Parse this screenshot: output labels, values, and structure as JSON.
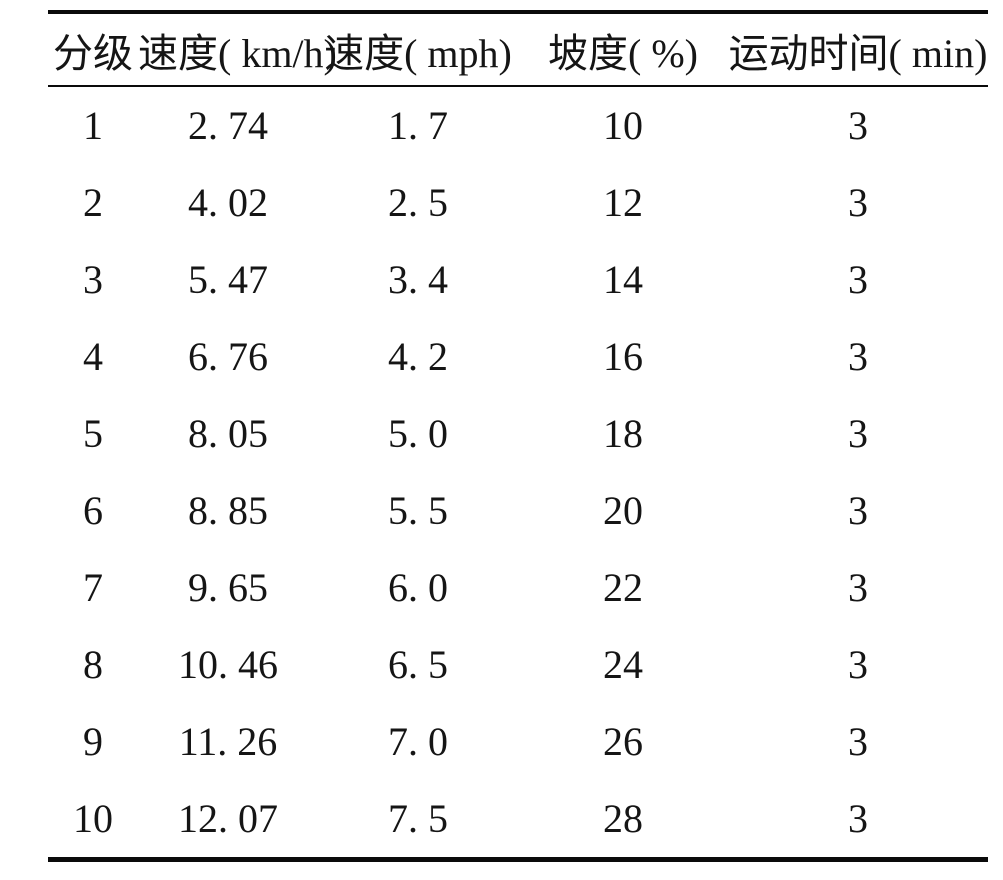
{
  "page": {
    "background_color": "#ffffff",
    "text_color": "#151515",
    "rule_color": "#0a0a0a"
  },
  "table": {
    "columns": [
      "分级",
      "速度( km/h)",
      "速度( mph)",
      "坡度( %)",
      "运动时间( min)"
    ],
    "rows": [
      [
        "1",
        "2. 74",
        "1. 7",
        "10",
        "3"
      ],
      [
        "2",
        "4. 02",
        "2. 5",
        "12",
        "3"
      ],
      [
        "3",
        "5. 47",
        "3. 4",
        "14",
        "3"
      ],
      [
        "4",
        "6. 76",
        "4. 2",
        "16",
        "3"
      ],
      [
        "5",
        "8. 05",
        "5. 0",
        "18",
        "3"
      ],
      [
        "6",
        "8. 85",
        "5. 5",
        "20",
        "3"
      ],
      [
        "7",
        "9. 65",
        "6. 0",
        "22",
        "3"
      ],
      [
        "8",
        "10. 46",
        "6. 5",
        "24",
        "3"
      ],
      [
        "9",
        "11. 26",
        "7. 0",
        "26",
        "3"
      ],
      [
        "10",
        "12. 07",
        "7. 5",
        "28",
        "3"
      ]
    ]
  }
}
